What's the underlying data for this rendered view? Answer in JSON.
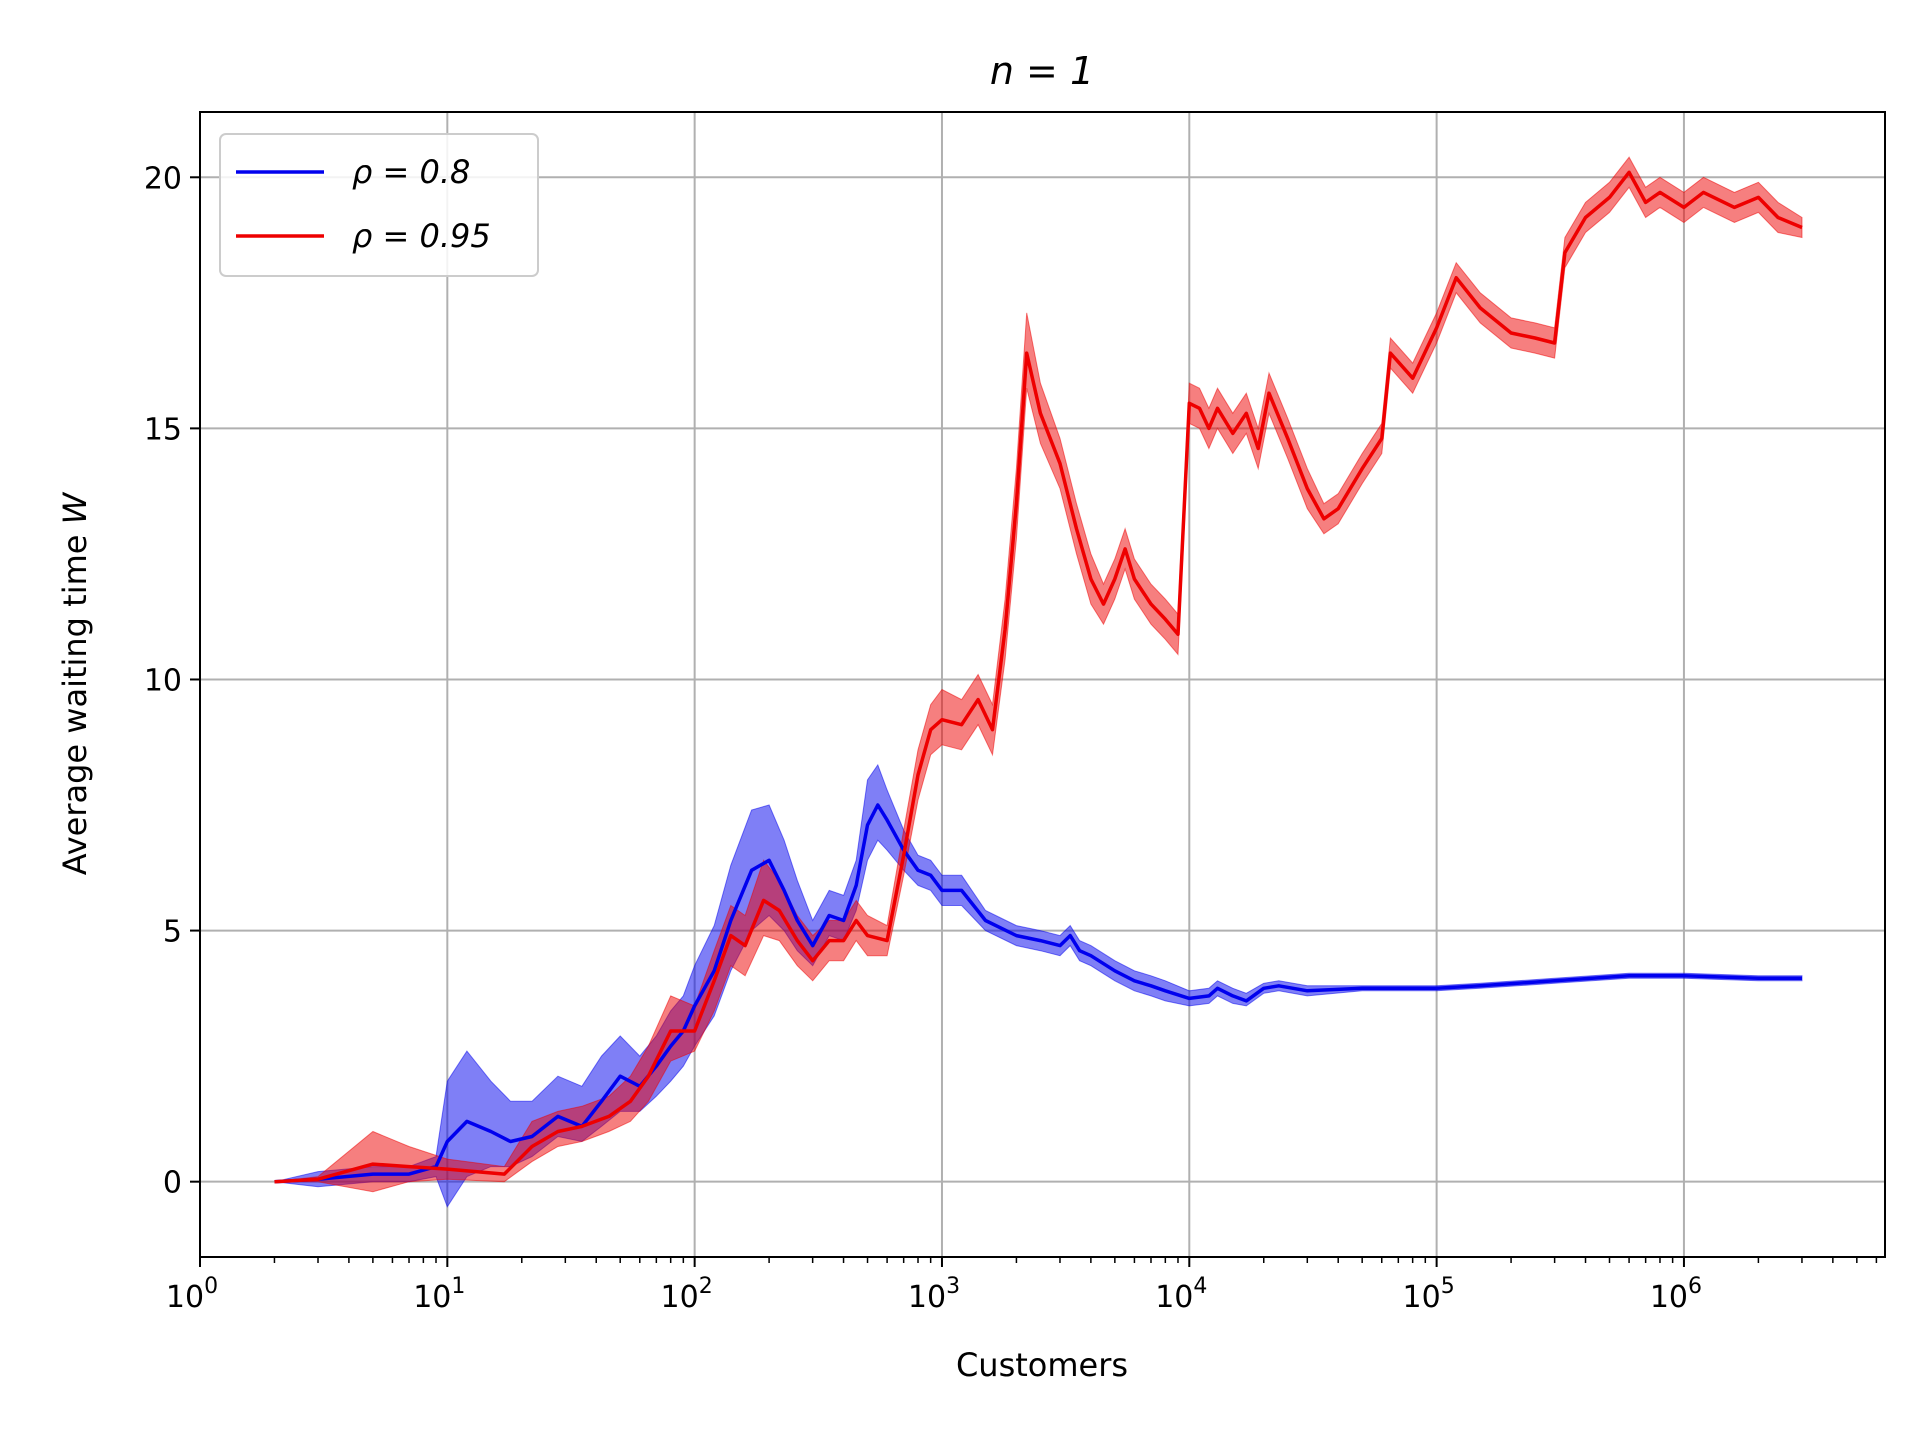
{
  "chart_data": {
    "type": "line",
    "title": "n = 1",
    "xlabel": "Customers",
    "ylabel": "Average waiting time W",
    "xscale": "log",
    "xlim": [
      1,
      6500000
    ],
    "ylim": [
      -1.5,
      21.3
    ],
    "xticks": [
      {
        "value": 1,
        "base": "10",
        "exp": "0"
      },
      {
        "value": 10,
        "base": "10",
        "exp": "1"
      },
      {
        "value": 100,
        "base": "10",
        "exp": "2"
      },
      {
        "value": 1000,
        "base": "10",
        "exp": "3"
      },
      {
        "value": 10000,
        "base": "10",
        "exp": "4"
      },
      {
        "value": 100000,
        "base": "10",
        "exp": "5"
      },
      {
        "value": 1000000,
        "base": "10",
        "exp": "6"
      }
    ],
    "yticks": [
      {
        "value": 0,
        "label": "0"
      },
      {
        "value": 5,
        "label": "5"
      },
      {
        "value": 10,
        "label": "10"
      },
      {
        "value": 15,
        "label": "15"
      },
      {
        "value": 20,
        "label": "20"
      }
    ],
    "grid": true,
    "legend_position": "top-left",
    "series": [
      {
        "name": "ρ = 0.8",
        "color": "#0000ee",
        "points": [
          [
            2,
            0.0,
            0.0,
            0.0
          ],
          [
            3,
            0.05,
            -0.1,
            0.2
          ],
          [
            5,
            0.15,
            0.0,
            0.3
          ],
          [
            7,
            0.15,
            0.0,
            0.3
          ],
          [
            9,
            0.3,
            0.1,
            0.5
          ],
          [
            10,
            0.8,
            -0.5,
            2.0
          ],
          [
            12,
            1.2,
            0.1,
            2.6
          ],
          [
            15,
            1.0,
            0.3,
            2.0
          ],
          [
            18,
            0.8,
            0.3,
            1.6
          ],
          [
            22,
            0.9,
            0.5,
            1.6
          ],
          [
            28,
            1.3,
            0.9,
            2.1
          ],
          [
            35,
            1.1,
            0.8,
            1.9
          ],
          [
            42,
            1.6,
            1.1,
            2.5
          ],
          [
            50,
            2.1,
            1.4,
            2.9
          ],
          [
            60,
            1.9,
            1.4,
            2.5
          ],
          [
            70,
            2.3,
            1.7,
            2.9
          ],
          [
            80,
            2.7,
            2.0,
            3.4
          ],
          [
            90,
            3.0,
            2.3,
            3.7
          ],
          [
            100,
            3.5,
            2.7,
            4.3
          ],
          [
            120,
            4.2,
            3.3,
            5.1
          ],
          [
            140,
            5.2,
            4.2,
            6.3
          ],
          [
            170,
            6.2,
            5.0,
            7.4
          ],
          [
            200,
            6.4,
            5.3,
            7.5
          ],
          [
            230,
            5.8,
            5.0,
            6.8
          ],
          [
            260,
            5.2,
            4.6,
            6.0
          ],
          [
            300,
            4.7,
            4.3,
            5.2
          ],
          [
            350,
            5.3,
            4.9,
            5.8
          ],
          [
            400,
            5.2,
            4.8,
            5.7
          ],
          [
            450,
            5.9,
            5.4,
            6.4
          ],
          [
            500,
            7.1,
            6.4,
            8.0
          ],
          [
            550,
            7.5,
            6.8,
            8.3
          ],
          [
            600,
            7.2,
            6.6,
            7.8
          ],
          [
            700,
            6.6,
            6.2,
            7.0
          ],
          [
            800,
            6.2,
            5.9,
            6.5
          ],
          [
            900,
            6.1,
            5.8,
            6.4
          ],
          [
            1000,
            5.8,
            5.5,
            6.1
          ],
          [
            1200,
            5.8,
            5.5,
            6.1
          ],
          [
            1500,
            5.2,
            5.0,
            5.4
          ],
          [
            2000,
            4.9,
            4.7,
            5.1
          ],
          [
            2500,
            4.8,
            4.6,
            5.0
          ],
          [
            3000,
            4.7,
            4.5,
            4.9
          ],
          [
            3300,
            4.9,
            4.7,
            5.1
          ],
          [
            3600,
            4.6,
            4.4,
            4.8
          ],
          [
            4000,
            4.5,
            4.3,
            4.7
          ],
          [
            5000,
            4.2,
            4.0,
            4.4
          ],
          [
            6000,
            4.0,
            3.8,
            4.2
          ],
          [
            7000,
            3.9,
            3.7,
            4.1
          ],
          [
            8000,
            3.8,
            3.6,
            4.0
          ],
          [
            10000,
            3.65,
            3.5,
            3.8
          ],
          [
            12000,
            3.7,
            3.55,
            3.85
          ],
          [
            13000,
            3.85,
            3.7,
            4.0
          ],
          [
            15000,
            3.7,
            3.55,
            3.85
          ],
          [
            17000,
            3.6,
            3.5,
            3.75
          ],
          [
            20000,
            3.85,
            3.75,
            3.95
          ],
          [
            23000,
            3.9,
            3.8,
            4.0
          ],
          [
            30000,
            3.8,
            3.7,
            3.9
          ],
          [
            50000,
            3.85,
            3.8,
            3.9
          ],
          [
            70000,
            3.85,
            3.8,
            3.9
          ],
          [
            100000,
            3.85,
            3.8,
            3.9
          ],
          [
            150000,
            3.9,
            3.85,
            3.95
          ],
          [
            300000,
            4.0,
            3.95,
            4.05
          ],
          [
            600000,
            4.1,
            4.05,
            4.15
          ],
          [
            1000000,
            4.1,
            4.05,
            4.15
          ],
          [
            2000000,
            4.05,
            4.0,
            4.1
          ],
          [
            3000000,
            4.05,
            4.0,
            4.1
          ]
        ]
      },
      {
        "name": "ρ = 0.95",
        "color": "#ee0000",
        "points": [
          [
            2,
            0.0,
            0.0,
            0.0
          ],
          [
            3,
            0.05,
            0.0,
            0.1
          ],
          [
            5,
            0.35,
            -0.2,
            1.0
          ],
          [
            7,
            0.3,
            0.0,
            0.7
          ],
          [
            10,
            0.25,
            0.05,
            0.45
          ],
          [
            17,
            0.15,
            0.0,
            0.3
          ],
          [
            22,
            0.7,
            0.4,
            1.2
          ],
          [
            28,
            1.0,
            0.7,
            1.4
          ],
          [
            35,
            1.1,
            0.8,
            1.5
          ],
          [
            45,
            1.3,
            1.0,
            1.7
          ],
          [
            55,
            1.6,
            1.2,
            2.1
          ],
          [
            65,
            2.1,
            1.6,
            2.7
          ],
          [
            80,
            3.0,
            2.4,
            3.7
          ],
          [
            100,
            3.0,
            2.6,
            3.5
          ],
          [
            120,
            4.0,
            3.4,
            4.6
          ],
          [
            140,
            4.9,
            4.3,
            5.5
          ],
          [
            160,
            4.7,
            4.1,
            5.3
          ],
          [
            190,
            5.6,
            4.9,
            6.4
          ],
          [
            220,
            5.4,
            4.8,
            6.0
          ],
          [
            260,
            4.8,
            4.3,
            5.3
          ],
          [
            300,
            4.4,
            4.0,
            4.9
          ],
          [
            350,
            4.8,
            4.4,
            5.2
          ],
          [
            400,
            4.8,
            4.4,
            5.2
          ],
          [
            450,
            5.2,
            4.8,
            5.6
          ],
          [
            500,
            4.9,
            4.5,
            5.3
          ],
          [
            600,
            4.8,
            4.5,
            5.1
          ],
          [
            700,
            6.5,
            6.1,
            7.0
          ],
          [
            800,
            8.1,
            7.6,
            8.6
          ],
          [
            900,
            9.0,
            8.5,
            9.5
          ],
          [
            1000,
            9.2,
            8.7,
            9.8
          ],
          [
            1200,
            9.1,
            8.6,
            9.6
          ],
          [
            1400,
            9.6,
            9.1,
            10.1
          ],
          [
            1600,
            9.0,
            8.5,
            9.5
          ],
          [
            1800,
            11.0,
            10.4,
            11.6
          ],
          [
            2000,
            13.5,
            12.8,
            14.2
          ],
          [
            2200,
            16.5,
            15.8,
            17.3
          ],
          [
            2500,
            15.3,
            14.7,
            15.9
          ],
          [
            3000,
            14.3,
            13.8,
            14.8
          ],
          [
            3500,
            13.0,
            12.5,
            13.5
          ],
          [
            4000,
            12.0,
            11.5,
            12.5
          ],
          [
            4500,
            11.5,
            11.1,
            11.9
          ],
          [
            5000,
            12.0,
            11.6,
            12.4
          ],
          [
            5500,
            12.6,
            12.2,
            13.0
          ],
          [
            6000,
            12.0,
            11.6,
            12.4
          ],
          [
            7000,
            11.5,
            11.1,
            11.9
          ],
          [
            8000,
            11.2,
            10.8,
            11.6
          ],
          [
            9000,
            10.9,
            10.5,
            11.3
          ],
          [
            10000,
            15.5,
            15.1,
            15.9
          ],
          [
            11000,
            15.4,
            15.0,
            15.8
          ],
          [
            12000,
            15.0,
            14.6,
            15.4
          ],
          [
            13000,
            15.4,
            15.0,
            15.8
          ],
          [
            15000,
            14.9,
            14.5,
            15.3
          ],
          [
            17000,
            15.3,
            14.9,
            15.7
          ],
          [
            19000,
            14.6,
            14.2,
            15.0
          ],
          [
            21000,
            15.7,
            15.3,
            16.1
          ],
          [
            25000,
            14.8,
            14.4,
            15.2
          ],
          [
            30000,
            13.8,
            13.4,
            14.2
          ],
          [
            35000,
            13.2,
            12.9,
            13.5
          ],
          [
            40000,
            13.4,
            13.1,
            13.7
          ],
          [
            50000,
            14.2,
            13.9,
            14.5
          ],
          [
            60000,
            14.8,
            14.5,
            15.1
          ],
          [
            65000,
            16.5,
            16.2,
            16.8
          ],
          [
            80000,
            16.0,
            15.7,
            16.3
          ],
          [
            100000,
            17.0,
            16.7,
            17.3
          ],
          [
            120000,
            18.0,
            17.7,
            18.3
          ],
          [
            150000,
            17.4,
            17.1,
            17.7
          ],
          [
            200000,
            16.9,
            16.6,
            17.2
          ],
          [
            250000,
            16.8,
            16.5,
            17.1
          ],
          [
            300000,
            16.7,
            16.4,
            17.0
          ],
          [
            330000,
            18.5,
            18.2,
            18.8
          ],
          [
            400000,
            19.2,
            18.9,
            19.5
          ],
          [
            500000,
            19.6,
            19.3,
            19.9
          ],
          [
            600000,
            20.1,
            19.8,
            20.4
          ],
          [
            700000,
            19.5,
            19.2,
            19.8
          ],
          [
            800000,
            19.7,
            19.4,
            20.0
          ],
          [
            1000000,
            19.4,
            19.1,
            19.7
          ],
          [
            1200000,
            19.7,
            19.4,
            20.0
          ],
          [
            1600000,
            19.4,
            19.1,
            19.7
          ],
          [
            2000000,
            19.6,
            19.3,
            19.9
          ],
          [
            2400000,
            19.2,
            18.9,
            19.5
          ],
          [
            3000000,
            19.0,
            18.8,
            19.2
          ]
        ]
      }
    ]
  }
}
